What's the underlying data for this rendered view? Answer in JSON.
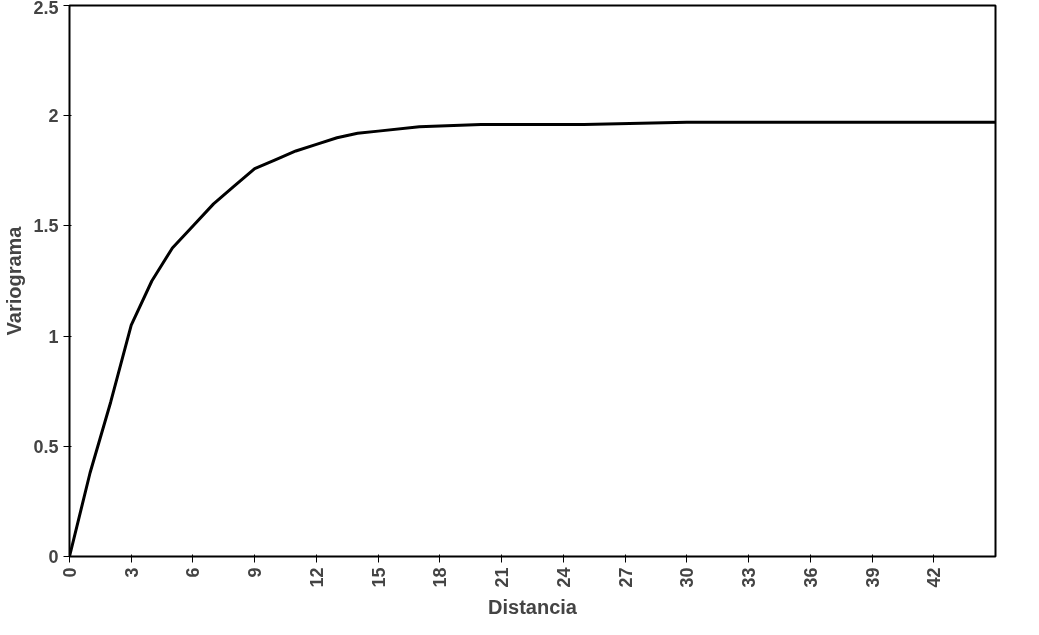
{
  "chart_data": {
    "type": "line",
    "xlabel": "Distancia",
    "ylabel": "Variograma",
    "x": [
      0,
      1,
      2,
      3,
      4,
      5,
      6,
      7,
      8,
      9,
      10,
      11,
      12,
      13,
      14,
      15,
      17,
      20,
      25,
      30,
      35,
      40,
      45
    ],
    "series": [
      {
        "color": "#000000",
        "values": [
          0,
          0.38,
          0.7,
          1.05,
          1.25,
          1.4,
          1.5,
          1.6,
          1.68,
          1.76,
          1.8,
          1.84,
          1.87,
          1.9,
          1.92,
          1.93,
          1.95,
          1.96,
          1.96,
          1.97,
          1.97,
          1.97,
          1.97
        ]
      }
    ],
    "xlim": [
      0,
      45
    ],
    "xticks": [
      0,
      3,
      6,
      9,
      12,
      15,
      18,
      21,
      24,
      27,
      30,
      33,
      36,
      39,
      42
    ],
    "ylim": [
      0,
      2.5
    ],
    "yticks": [
      0,
      0.5,
      1,
      1.5,
      2,
      2.5
    ],
    "grid": false,
    "marker": "none",
    "line_style": "solid"
  }
}
